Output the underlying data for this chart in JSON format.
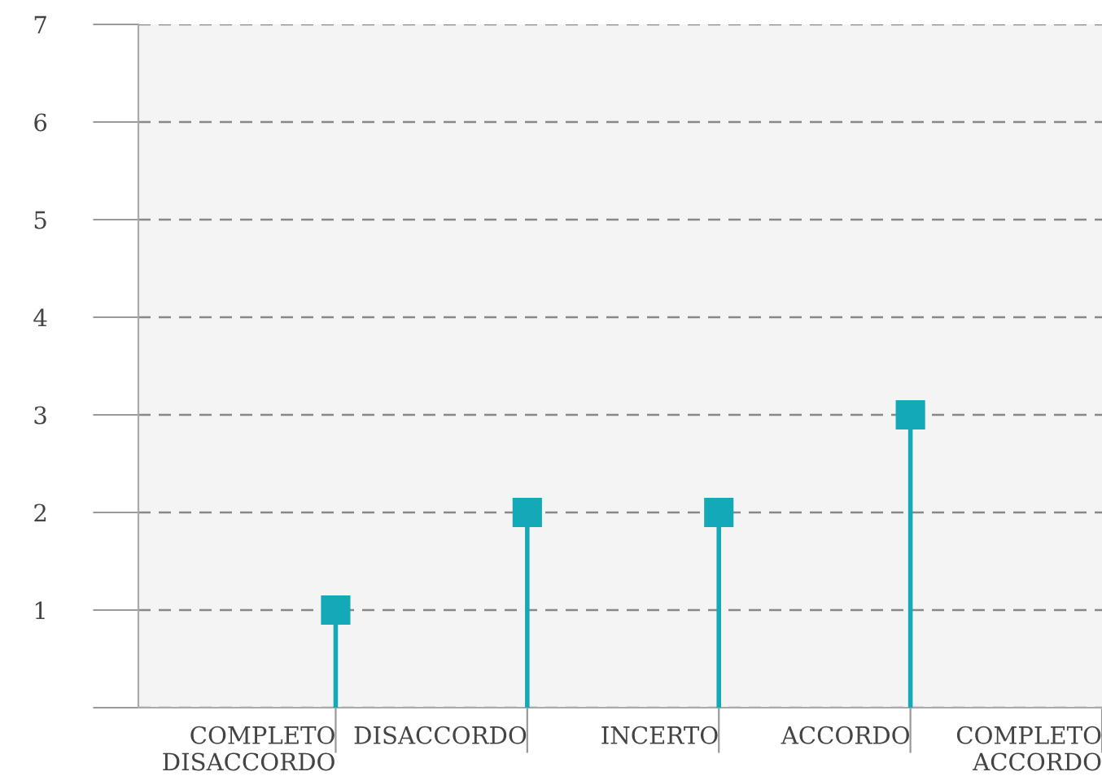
{
  "chart_data": {
    "type": "lollipop",
    "categories": [
      "COMPLETO\nDISACCORDO",
      "DISACCORDO",
      "INCERTO",
      "ACCORDO",
      "COMPLETO\nACCORDO"
    ],
    "values": [
      1,
      2,
      2,
      3,
      null
    ],
    "color": "#14a9b8",
    "marker": "square",
    "ylim": [
      0,
      7
    ],
    "yticks": [
      {
        "value": 0,
        "label": null
      },
      1,
      2,
      3,
      4,
      5,
      6,
      7
    ],
    "grid": "y"
  }
}
